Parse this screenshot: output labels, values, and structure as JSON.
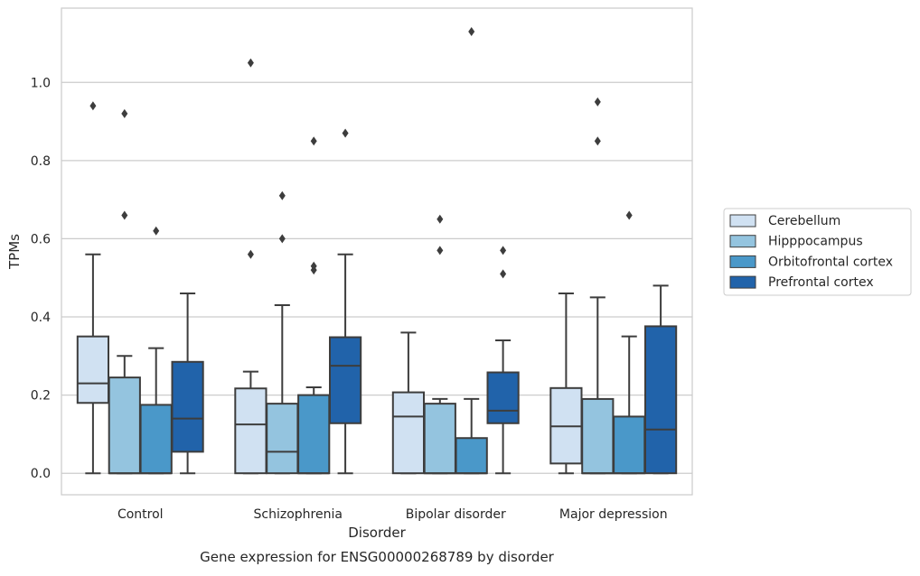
{
  "chart_data": {
    "type": "box",
    "title": "Gene expression for ENSG00000268789 by disorder",
    "xlabel": "Disorder",
    "ylabel": "TPMs",
    "ylim": [
      -0.055,
      1.19
    ],
    "yticks": [
      0.0,
      0.2,
      0.4,
      0.6,
      0.8,
      1.0
    ],
    "ytick_labels": [
      "0.0",
      "0.2",
      "0.4",
      "0.6",
      "0.8",
      "1.0"
    ],
    "grid": "horizontal",
    "legend_position": "right",
    "categories": [
      "Control",
      "Schizophrenia",
      "Bipolar disorder",
      "Major depression"
    ],
    "series": [
      {
        "name": "Cerebellum",
        "color": "#d0e1f2",
        "boxes": [
          {
            "min": 0.0,
            "q1": 0.18,
            "median": 0.23,
            "q3": 0.35,
            "max": 0.56,
            "outliers": [
              0.94
            ]
          },
          {
            "min": 0.0,
            "q1": 0.0,
            "median": 0.125,
            "q3": 0.217,
            "max": 0.26,
            "outliers": [
              0.56,
              1.05
            ]
          },
          {
            "min": 0.0,
            "q1": 0.0,
            "median": 0.145,
            "q3": 0.207,
            "max": 0.36,
            "outliers": []
          },
          {
            "min": 0.0,
            "q1": 0.025,
            "median": 0.12,
            "q3": 0.218,
            "max": 0.46,
            "outliers": []
          }
        ]
      },
      {
        "name": "Hipppocampus",
        "color": "#94c4df",
        "boxes": [
          {
            "min": 0.0,
            "q1": 0.0,
            "median": 0.0,
            "q3": 0.245,
            "max": 0.3,
            "outliers": [
              0.66,
              0.92
            ]
          },
          {
            "min": 0.0,
            "q1": 0.0,
            "median": 0.055,
            "q3": 0.178,
            "max": 0.43,
            "outliers": [
              0.6,
              0.71
            ]
          },
          {
            "min": 0.0,
            "q1": 0.0,
            "median": 0.0,
            "q3": 0.178,
            "max": 0.19,
            "outliers": [
              0.57,
              0.65
            ]
          },
          {
            "min": 0.0,
            "q1": 0.0,
            "median": 0.0,
            "q3": 0.19,
            "max": 0.45,
            "outliers": [
              0.85,
              0.95
            ]
          }
        ]
      },
      {
        "name": "Orbitofrontal cortex",
        "color": "#4a98c9",
        "boxes": [
          {
            "min": 0.0,
            "q1": 0.0,
            "median": 0.0,
            "q3": 0.175,
            "max": 0.32,
            "outliers": [
              0.62
            ]
          },
          {
            "min": 0.0,
            "q1": 0.0,
            "median": 0.0,
            "q3": 0.2,
            "max": 0.22,
            "outliers": [
              0.52,
              0.53,
              0.85
            ]
          },
          {
            "min": 0.0,
            "q1": 0.0,
            "median": 0.0,
            "q3": 0.09,
            "max": 0.19,
            "outliers": [
              1.13
            ]
          },
          {
            "min": 0.0,
            "q1": 0.0,
            "median": 0.0,
            "q3": 0.145,
            "max": 0.35,
            "outliers": [
              0.66
            ]
          }
        ]
      },
      {
        "name": "Prefrontal cortex",
        "color": "#2163aa",
        "boxes": [
          {
            "min": 0.0,
            "q1": 0.055,
            "median": 0.14,
            "q3": 0.285,
            "max": 0.46,
            "outliers": []
          },
          {
            "min": 0.0,
            "q1": 0.128,
            "median": 0.275,
            "q3": 0.348,
            "max": 0.56,
            "outliers": [
              0.87
            ]
          },
          {
            "min": 0.0,
            "q1": 0.128,
            "median": 0.16,
            "q3": 0.258,
            "max": 0.34,
            "outliers": [
              0.51,
              0.57
            ]
          },
          {
            "min": 0.0,
            "q1": 0.0,
            "median": 0.112,
            "q3": 0.376,
            "max": 0.48,
            "outliers": []
          }
        ]
      }
    ]
  }
}
